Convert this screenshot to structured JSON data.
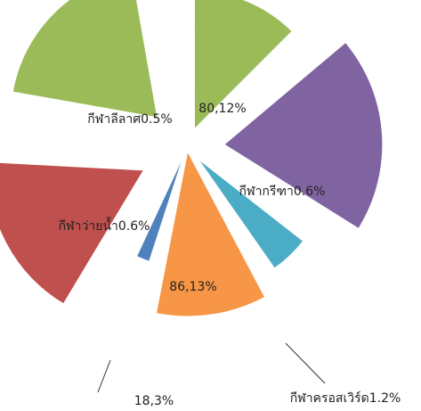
{
  "chart_data": {
    "type": "pie",
    "variant": "exploded-rose",
    "legend": "none",
    "slices": [
      {
        "label": "80,12%",
        "color": "#9bbb59"
      },
      {
        "label": "กีฬากรีฑา0.6%",
        "color": "#8064a2"
      },
      {
        "label": "กีฬาครอสเวิร์ด1.2%",
        "color": "#4bacc6"
      },
      {
        "label": "86,13%",
        "color": "#f79646"
      },
      {
        "label": "18,3%",
        "color": "#4f81bd"
      },
      {
        "label": "กีฬาว่ายน้ำ0.6%",
        "color": "#c0504d"
      },
      {
        "label": "กีฬาลีลาศ0.5%",
        "color": "#9bbb59"
      }
    ]
  }
}
